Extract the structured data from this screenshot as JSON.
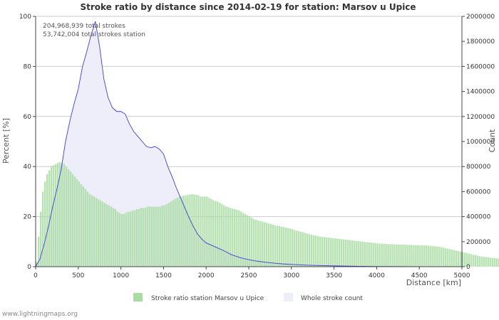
{
  "chart_data": {
    "type": "bar",
    "title": "Stroke ratio by distance since 2014-02-19 for station: Marsov u Upice",
    "annotations": [
      "204,968,939 total strokes",
      "53,742,004 total strokes station"
    ],
    "xlabel": "Distance   [km]",
    "ylabel_left": "Percent   [%]",
    "ylabel_right": "Count",
    "xlim": [
      0,
      5000
    ],
    "ylim_left": [
      0,
      100
    ],
    "ylim_right": [
      0,
      2000000
    ],
    "x_ticks": [
      0,
      500,
      1000,
      1500,
      2000,
      2500,
      3000,
      3500,
      4000,
      4500,
      5000
    ],
    "y_ticks_left": [
      0,
      20,
      40,
      60,
      80,
      100
    ],
    "y_ticks_right": [
      "0",
      "200000",
      "400000",
      "600000",
      "800000",
      "1000000",
      "1200000",
      "1400000",
      "1600000",
      "1800000",
      "2000000"
    ],
    "grid": true,
    "legend_position": "bottom",
    "series": [
      {
        "name": "Stroke ratio station Marsov u Upice",
        "axis": "left",
        "kind": "bar",
        "color": "#a9dca3",
        "x_start": 0,
        "x_step": 25,
        "values": [
          2,
          12,
          22,
          30,
          34,
          37,
          38.5,
          40,
          40.5,
          41,
          41.5,
          41.7,
          41.5,
          41,
          40,
          39,
          38,
          37,
          36,
          35,
          34,
          33,
          32,
          31,
          30,
          29,
          28.5,
          28,
          27.5,
          27,
          26.5,
          26,
          25.5,
          25,
          24.5,
          24,
          23.5,
          23,
          22,
          21.5,
          21,
          21,
          21.5,
          22,
          22,
          22.5,
          22.5,
          23,
          23,
          23.5,
          23.5,
          23.5,
          24,
          24,
          24,
          24,
          24,
          24,
          24,
          24.5,
          24.5,
          25,
          25.5,
          26,
          26.5,
          27,
          27.5,
          28,
          28,
          28.5,
          28.5,
          28.7,
          28.8,
          29,
          28.8,
          28.7,
          28.5,
          28,
          28,
          28,
          28,
          27.5,
          27,
          26.5,
          26.2,
          26,
          25.5,
          25,
          24.5,
          24,
          23.8,
          23.5,
          23.2,
          23,
          22.8,
          22.5,
          22,
          21.5,
          21,
          20.5,
          20,
          19.5,
          19,
          18.7,
          18.4,
          18.2,
          18,
          17.8,
          17.5,
          17.2,
          17,
          16.8,
          16.5,
          16.3,
          16.2,
          16,
          15.8,
          15.6,
          15.4,
          15.2,
          15,
          14.7,
          14.4,
          14.2,
          14,
          13.8,
          13.5,
          13.2,
          13,
          12.8,
          12.6,
          12.4,
          12.2,
          12,
          11.9,
          11.8,
          11.7,
          11.6,
          11.5,
          11.4,
          11.3,
          11.2,
          11.1,
          11,
          10.9,
          10.8,
          10.7,
          10.6,
          10.5,
          10.4,
          10.3,
          10.2,
          10.1,
          10,
          9.9,
          9.8,
          9.7,
          9.6,
          9.5,
          9.4,
          9.3,
          9.2,
          9.2,
          9.1,
          9.1,
          9,
          9,
          9,
          8.9,
          8.9,
          8.9,
          8.8,
          8.8,
          8.8,
          8.7,
          8.7,
          8.7,
          8.6,
          8.6,
          8.6,
          8.5,
          8.5,
          8.5,
          8.5,
          8.4,
          8.3,
          8.2,
          8.1,
          8,
          7.9,
          7.8,
          7.6,
          7.4,
          7.2,
          7,
          6.8,
          6.6,
          6.4,
          6.2,
          6,
          5.8,
          5.6,
          5.4,
          5.2,
          5,
          4.8,
          4.6,
          4.4,
          4.2,
          4,
          3.9,
          3.8,
          3.7,
          3.6,
          3.5,
          3.4,
          3.3,
          3.2,
          3.1,
          3,
          2.9,
          2.8,
          2.7,
          2.6,
          2.5,
          2.4,
          2.3,
          2.2,
          2.1,
          2
        ]
      },
      {
        "name": "Whole stroke count",
        "axis": "right",
        "kind": "area",
        "fill": "#eeeefa",
        "line": "#3f3fd8",
        "points": [
          [
            0,
            0
          ],
          [
            50,
            60000
          ],
          [
            100,
            180000
          ],
          [
            150,
            320000
          ],
          [
            200,
            480000
          ],
          [
            250,
            620000
          ],
          [
            300,
            780000
          ],
          [
            350,
            1000000
          ],
          [
            400,
            1160000
          ],
          [
            450,
            1300000
          ],
          [
            500,
            1420000
          ],
          [
            550,
            1600000
          ],
          [
            600,
            1720000
          ],
          [
            650,
            1850000
          ],
          [
            700,
            1960000
          ],
          [
            750,
            1760000
          ],
          [
            800,
            1500000
          ],
          [
            850,
            1350000
          ],
          [
            900,
            1270000
          ],
          [
            950,
            1240000
          ],
          [
            1000,
            1240000
          ],
          [
            1050,
            1220000
          ],
          [
            1100,
            1140000
          ],
          [
            1150,
            1080000
          ],
          [
            1200,
            1040000
          ],
          [
            1250,
            1000000
          ],
          [
            1300,
            960000
          ],
          [
            1350,
            950000
          ],
          [
            1400,
            960000
          ],
          [
            1450,
            940000
          ],
          [
            1500,
            900000
          ],
          [
            1550,
            800000
          ],
          [
            1600,
            720000
          ],
          [
            1650,
            630000
          ],
          [
            1700,
            550000
          ],
          [
            1750,
            470000
          ],
          [
            1800,
            390000
          ],
          [
            1850,
            320000
          ],
          [
            1900,
            260000
          ],
          [
            1950,
            220000
          ],
          [
            2000,
            190000
          ],
          [
            2100,
            160000
          ],
          [
            2200,
            130000
          ],
          [
            2300,
            95000
          ],
          [
            2400,
            72000
          ],
          [
            2500,
            56000
          ],
          [
            2600,
            44000
          ],
          [
            2700,
            35000
          ],
          [
            2800,
            28000
          ],
          [
            2900,
            22000
          ],
          [
            3000,
            18000
          ],
          [
            3200,
            12000
          ],
          [
            3400,
            8000
          ],
          [
            3600,
            5000
          ],
          [
            3800,
            3000
          ],
          [
            4000,
            2000
          ],
          [
            4300,
            1000
          ],
          [
            4600,
            500
          ],
          [
            5000,
            200
          ]
        ]
      }
    ]
  },
  "footer": {
    "watermark": "www.lightningmaps.org"
  }
}
